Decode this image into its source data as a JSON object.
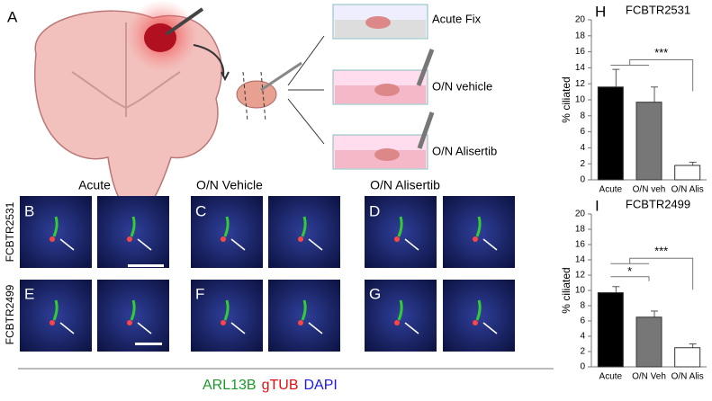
{
  "panel_labels": [
    "A",
    "B",
    "C",
    "D",
    "E",
    "F",
    "G"
  ],
  "schematic_steps": [
    "Acute Fix",
    "O/N vehicle",
    "O/N Alisertib"
  ],
  "micrograph_columns": [
    "Acute",
    "O/N Vehicle",
    "O/N Alisertib"
  ],
  "row_labels": [
    "FCBTR2531",
    "FCBTR2499"
  ],
  "stain_legend": [
    {
      "text": "ARL13B",
      "color": "#1a9a2a"
    },
    {
      "text": "gTUB",
      "color": "#e01010"
    },
    {
      "text": "DAPI",
      "color": "#1a1ae0"
    }
  ],
  "chart_data": [
    {
      "type": "bar",
      "panel": "H",
      "title": "FCBTR2531",
      "y_label": "% ciliated",
      "categories": [
        "Acute",
        "O/N veh",
        "O/N Alis"
      ],
      "values": [
        11.6,
        9.7,
        1.8
      ],
      "errors": [
        2.2,
        1.9,
        0.4
      ],
      "colors": [
        "#000000",
        "#777777",
        "#ffffff"
      ],
      "ylim": [
        0,
        20
      ],
      "yticks": [
        0,
        2,
        4,
        6,
        8,
        10,
        12,
        14,
        16,
        18,
        20
      ],
      "annotations": [
        "***"
      ]
    },
    {
      "type": "bar",
      "panel": "I",
      "title": "FCBTR2499",
      "y_label": "% ciliated",
      "categories": [
        "Acute",
        "O/N Veh",
        "O/N Alis"
      ],
      "values": [
        9.7,
        6.5,
        2.5
      ],
      "errors": [
        0.8,
        0.8,
        0.5
      ],
      "colors": [
        "#000000",
        "#777777",
        "#ffffff"
      ],
      "ylim": [
        0,
        20
      ],
      "yticks": [
        0,
        2,
        4,
        6,
        8,
        10,
        12,
        14,
        16,
        18,
        20
      ],
      "annotations": [
        "*",
        "***"
      ]
    }
  ]
}
